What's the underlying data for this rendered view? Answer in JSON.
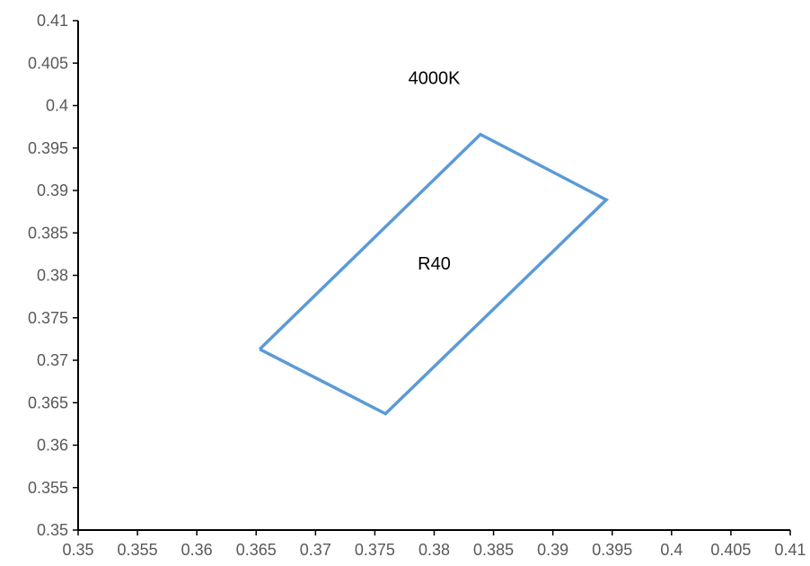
{
  "chart_data": {
    "type": "scatter",
    "title": "",
    "xlabel": "",
    "ylabel": "",
    "xlim": [
      0.35,
      0.41
    ],
    "ylim": [
      0.35,
      0.41
    ],
    "x_ticks": [
      "0.35",
      "0.355",
      "0.36",
      "0.365",
      "0.37",
      "0.375",
      "0.38",
      "0.385",
      "0.39",
      "0.395",
      "0.4",
      "0.405",
      "0.41"
    ],
    "y_ticks": [
      "0.35",
      "0.355",
      "0.36",
      "0.365",
      "0.37",
      "0.375",
      "0.38",
      "0.385",
      "0.39",
      "0.395",
      "0.4",
      "0.405",
      "0.41"
    ],
    "grid": false,
    "series": [
      {
        "color": "#5B9BD5",
        "closed": true,
        "x": [
          0.3653,
          0.3839,
          0.3945,
          0.3759,
          0.3653
        ],
        "y": [
          0.3713,
          0.3966,
          0.3889,
          0.3637,
          0.3713
        ]
      }
    ],
    "annotations": [
      {
        "text": "4000K",
        "x": 0.38,
        "y": 0.4032
      },
      {
        "text": "R40",
        "x": 0.38,
        "y": 0.3813
      }
    ]
  }
}
